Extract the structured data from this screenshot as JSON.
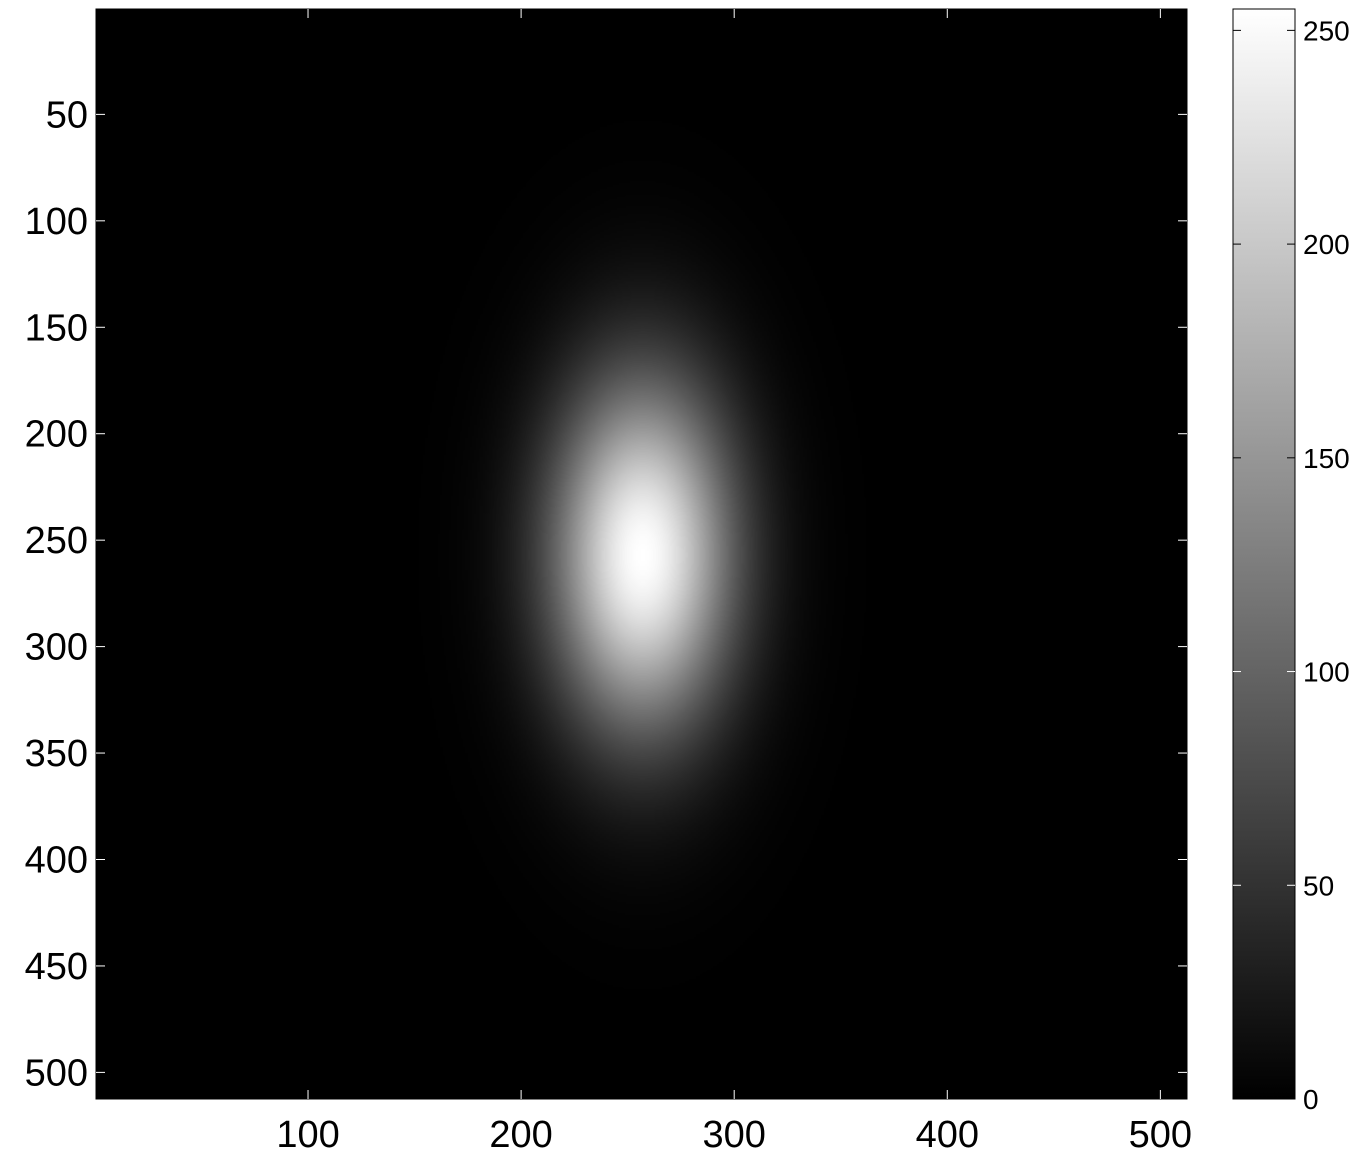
{
  "chart_data": {
    "type": "heatmap",
    "title": "",
    "xlabel": "",
    "ylabel": "",
    "xlim": [
      0.5,
      512.5
    ],
    "ylim": [
      0.5,
      512.5
    ],
    "y_reversed": true,
    "x_ticks": [
      "100",
      "200",
      "300",
      "400",
      "500"
    ],
    "x_tick_values": [
      100,
      200,
      300,
      400,
      500
    ],
    "y_ticks": [
      "50",
      "100",
      "150",
      "200",
      "250",
      "300",
      "350",
      "400",
      "450",
      "500"
    ],
    "y_tick_values": [
      50,
      100,
      150,
      200,
      250,
      300,
      350,
      400,
      450,
      500
    ],
    "colormap": "gray",
    "colorbar": {
      "range": [
        0,
        255
      ],
      "ticks": [
        "0",
        "50",
        "100",
        "150",
        "200",
        "250"
      ],
      "tick_values": [
        0,
        50,
        100,
        150,
        200,
        250
      ]
    },
    "gaussian_blob": {
      "center_x": 257,
      "center_y": 257,
      "peak": 255,
      "sigma_x": 30,
      "sigma_y": 58
    },
    "grid": false
  }
}
